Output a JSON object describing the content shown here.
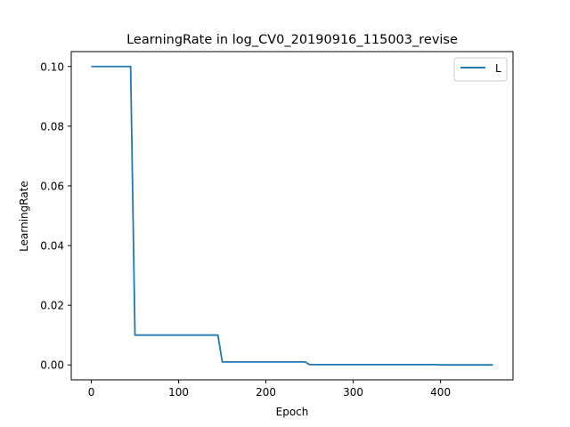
{
  "chart_data": {
    "type": "line",
    "title": "LearningRate in log_CV0_20190916_115003_revise",
    "xlabel": "Epoch",
    "ylabel": "LearningRate",
    "xlim": [
      -23,
      483
    ],
    "ylim": [
      -0.005,
      0.105
    ],
    "xticks": [
      0,
      100,
      200,
      300,
      400
    ],
    "xtick_labels": [
      "0",
      "100",
      "200",
      "300",
      "400"
    ],
    "yticks": [
      0.0,
      0.02,
      0.04,
      0.06,
      0.08,
      0.1
    ],
    "ytick_labels": [
      "0.00",
      "0.02",
      "0.04",
      "0.06",
      "0.08",
      "0.10"
    ],
    "grid": false,
    "legend": {
      "position": "top-right"
    },
    "series": [
      {
        "name": "L",
        "color": "#1f77b4",
        "x": [
          0,
          45,
          50,
          145,
          150,
          245,
          250,
          395,
          400,
          460
        ],
        "y": [
          0.1,
          0.1,
          0.01,
          0.01,
          0.001,
          0.001,
          0.0001,
          0.0001,
          1e-05,
          1e-05
        ]
      }
    ]
  }
}
